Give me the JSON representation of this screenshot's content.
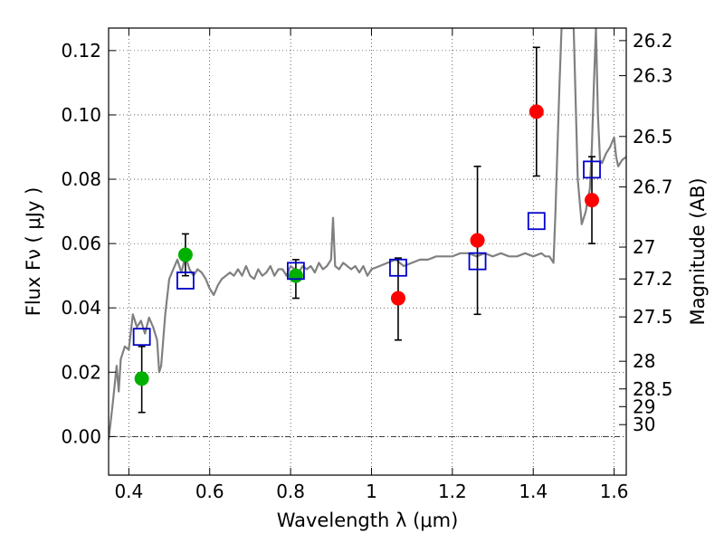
{
  "chart_data": {
    "type": "scatter",
    "xlabel": "Wavelength  λ (μm)",
    "ylabel": "Flux  Fν  ( μJy )",
    "ylabel_right": "Magnitude (AB)",
    "xlim": [
      0.35,
      1.63
    ],
    "ylim": [
      -0.012,
      0.127
    ],
    "grid": true,
    "x_ticks": [
      0.4,
      0.6,
      0.8,
      1.0,
      1.2,
      1.4,
      1.6
    ],
    "x_tick_labels": [
      "0.4",
      "0.6",
      "0.8",
      "1",
      "1.2",
      "1.4",
      "1.6"
    ],
    "y_ticks": [
      0.0,
      0.02,
      0.04,
      0.06,
      0.08,
      0.1,
      0.12
    ],
    "y_tick_labels": [
      "0.00",
      "0.02",
      "0.04",
      "0.06",
      "0.08",
      "0.10",
      "0.12"
    ],
    "right_ticks": [
      {
        "label": "26.2",
        "flux": 0.1231
      },
      {
        "label": "26.3",
        "flux": 0.1122
      },
      {
        "label": "26.5",
        "flux": 0.0933
      },
      {
        "label": "26.7",
        "flux": 0.0776
      },
      {
        "label": "27",
        "flux": 0.0589
      },
      {
        "label": "27.2",
        "flux": 0.049
      },
      {
        "label": "27.5",
        "flux": 0.0372
      },
      {
        "label": "28",
        "flux": 0.0234
      },
      {
        "label": "28.5",
        "flux": 0.0148
      },
      {
        "label": "29",
        "flux": 0.0093
      },
      {
        "label": "30",
        "flux": 0.0037
      }
    ],
    "series": [
      {
        "name": "model spectrum",
        "type": "line",
        "color": "#808080",
        "points": [
          [
            0.35,
            -0.001
          ],
          [
            0.36,
            0.01
          ],
          [
            0.37,
            0.022
          ],
          [
            0.375,
            0.014
          ],
          [
            0.38,
            0.024
          ],
          [
            0.39,
            0.028
          ],
          [
            0.4,
            0.027
          ],
          [
            0.41,
            0.038
          ],
          [
            0.42,
            0.034
          ],
          [
            0.43,
            0.036
          ],
          [
            0.44,
            0.032
          ],
          [
            0.45,
            0.037
          ],
          [
            0.46,
            0.034
          ],
          [
            0.47,
            0.03
          ],
          [
            0.475,
            0.02
          ],
          [
            0.48,
            0.022
          ],
          [
            0.49,
            0.038
          ],
          [
            0.5,
            0.049
          ],
          [
            0.51,
            0.052
          ],
          [
            0.52,
            0.055
          ],
          [
            0.53,
            0.051
          ],
          [
            0.54,
            0.056
          ],
          [
            0.55,
            0.052
          ],
          [
            0.56,
            0.05
          ],
          [
            0.57,
            0.052
          ],
          [
            0.58,
            0.051
          ],
          [
            0.59,
            0.049
          ],
          [
            0.6,
            0.046
          ],
          [
            0.61,
            0.044
          ],
          [
            0.62,
            0.047
          ],
          [
            0.63,
            0.049
          ],
          [
            0.64,
            0.05
          ],
          [
            0.65,
            0.051
          ],
          [
            0.66,
            0.05
          ],
          [
            0.67,
            0.052
          ],
          [
            0.68,
            0.05
          ],
          [
            0.69,
            0.053
          ],
          [
            0.7,
            0.05
          ],
          [
            0.71,
            0.049
          ],
          [
            0.72,
            0.052
          ],
          [
            0.73,
            0.05
          ],
          [
            0.74,
            0.051
          ],
          [
            0.75,
            0.053
          ],
          [
            0.76,
            0.05
          ],
          [
            0.77,
            0.052
          ],
          [
            0.78,
            0.052
          ],
          [
            0.79,
            0.05
          ],
          [
            0.8,
            0.053
          ],
          [
            0.81,
            0.052
          ],
          [
            0.82,
            0.051
          ],
          [
            0.83,
            0.053
          ],
          [
            0.84,
            0.052
          ],
          [
            0.85,
            0.053
          ],
          [
            0.86,
            0.051
          ],
          [
            0.87,
            0.054
          ],
          [
            0.88,
            0.052
          ],
          [
            0.89,
            0.053
          ],
          [
            0.9,
            0.055
          ],
          [
            0.905,
            0.068
          ],
          [
            0.91,
            0.053
          ],
          [
            0.92,
            0.052
          ],
          [
            0.93,
            0.054
          ],
          [
            0.94,
            0.053
          ],
          [
            0.95,
            0.052
          ],
          [
            0.96,
            0.053
          ],
          [
            0.97,
            0.051
          ],
          [
            0.98,
            0.053
          ],
          [
            0.99,
            0.05
          ],
          [
            1.0,
            0.052
          ],
          [
            1.02,
            0.053
          ],
          [
            1.04,
            0.054
          ],
          [
            1.06,
            0.055
          ],
          [
            1.08,
            0.053
          ],
          [
            1.1,
            0.054
          ],
          [
            1.12,
            0.055
          ],
          [
            1.14,
            0.055
          ],
          [
            1.16,
            0.056
          ],
          [
            1.18,
            0.056
          ],
          [
            1.2,
            0.056
          ],
          [
            1.22,
            0.057
          ],
          [
            1.24,
            0.057
          ],
          [
            1.26,
            0.056
          ],
          [
            1.28,
            0.057
          ],
          [
            1.3,
            0.056
          ],
          [
            1.32,
            0.057
          ],
          [
            1.34,
            0.056
          ],
          [
            1.36,
            0.056
          ],
          [
            1.38,
            0.057
          ],
          [
            1.4,
            0.056
          ],
          [
            1.42,
            0.057
          ],
          [
            1.43,
            0.056
          ],
          [
            1.44,
            0.056
          ],
          [
            1.45,
            0.054
          ],
          [
            1.455,
            0.07
          ],
          [
            1.46,
            0.09
          ],
          [
            1.465,
            0.11
          ],
          [
            1.47,
            0.127
          ],
          [
            1.49,
            0.127
          ],
          [
            1.5,
            0.127
          ],
          [
            1.51,
            0.08
          ],
          [
            1.52,
            0.066
          ],
          [
            1.53,
            0.07
          ],
          [
            1.535,
            0.074
          ],
          [
            1.54,
            0.077
          ],
          [
            1.545,
            0.09
          ],
          [
            1.55,
            0.11
          ],
          [
            1.555,
            0.127
          ],
          [
            1.56,
            0.1
          ],
          [
            1.565,
            0.086
          ],
          [
            1.57,
            0.085
          ],
          [
            1.58,
            0.088
          ],
          [
            1.59,
            0.09
          ],
          [
            1.6,
            0.093
          ],
          [
            1.605,
            0.087
          ],
          [
            1.61,
            0.084
          ],
          [
            1.62,
            0.086
          ],
          [
            1.63,
            0.087
          ]
        ]
      },
      {
        "name": "measured flux (green)",
        "type": "scatter",
        "color": "#00b000",
        "points": [
          {
            "x": 0.432,
            "y": 0.018,
            "yerr": [
              0.0075,
              0.028
            ]
          },
          {
            "x": 0.54,
            "y": 0.0565,
            "yerr": [
              0.05,
              0.063
            ]
          },
          {
            "x": 0.813,
            "y": 0.05,
            "yerr": [
              0.043,
              0.055
            ]
          }
        ]
      },
      {
        "name": "measured flux (red)",
        "type": "scatter",
        "color": "#ff0000",
        "points": [
          {
            "x": 1.066,
            "y": 0.043,
            "yerr": [
              0.03,
              0.0555
            ]
          },
          {
            "x": 1.262,
            "y": 0.061,
            "yerr": [
              0.038,
              0.084
            ]
          },
          {
            "x": 1.408,
            "y": 0.101,
            "yerr": [
              0.081,
              0.121
            ]
          },
          {
            "x": 1.545,
            "y": 0.0735,
            "yerr": [
              0.06,
              0.087
            ]
          }
        ]
      },
      {
        "name": "model band flux",
        "type": "scatter",
        "color": "#0000cc",
        "marker": "open-square",
        "points": [
          {
            "x": 0.432,
            "y": 0.031
          },
          {
            "x": 0.54,
            "y": 0.0485
          },
          {
            "x": 0.813,
            "y": 0.0515
          },
          {
            "x": 1.066,
            "y": 0.0525
          },
          {
            "x": 1.262,
            "y": 0.0545
          },
          {
            "x": 1.408,
            "y": 0.067
          },
          {
            "x": 1.545,
            "y": 0.083
          }
        ]
      }
    ]
  }
}
